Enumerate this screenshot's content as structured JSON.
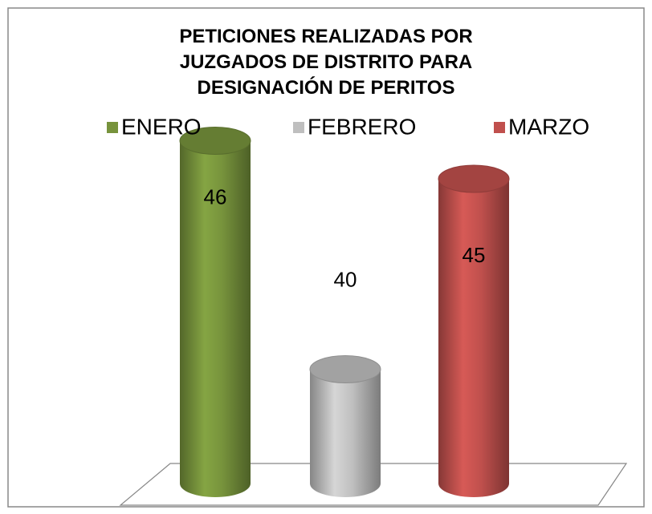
{
  "chart_data": {
    "type": "bar3d",
    "title": "PETICIONES REALIZADAS POR JUZGADOS DE DISTRITO PARA DESIGNACIÓN DE PERITOS",
    "series": [
      {
        "name": "ENERO",
        "color": "#77933c",
        "values": [
          46
        ]
      },
      {
        "name": "FEBRERO",
        "color": "#bfbfbf",
        "values": [
          40
        ]
      },
      {
        "name": "MARZO",
        "color": "#c0504d",
        "values": [
          45
        ]
      }
    ],
    "ylim": [
      37,
      47
    ],
    "legend": "top"
  }
}
